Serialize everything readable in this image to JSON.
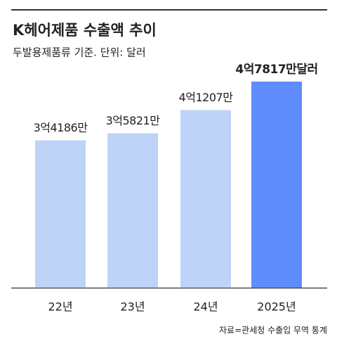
{
  "chart_data": {
    "type": "bar",
    "title": "K헤어제품 수출액 추이",
    "subtitle": "두발용제품류 기준. 단위: 달러",
    "categories": [
      "22년",
      "23년",
      "24년",
      "2025년"
    ],
    "values": [
      341860000,
      358210000,
      412070000,
      478170000
    ],
    "value_labels": [
      "3억4186만",
      "3억5821만",
      "4억1207만",
      "4억7817만달러"
    ],
    "colors": [
      "#bdd3f8",
      "#bdd3f8",
      "#bdd3f8",
      "#5f8dfe"
    ],
    "source": "자료=관세청 수출입 무역 통계"
  }
}
